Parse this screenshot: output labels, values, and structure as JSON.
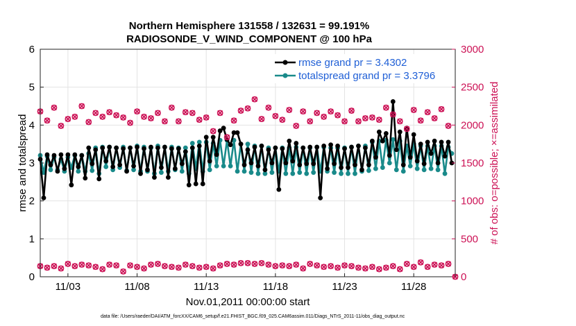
{
  "chart_data": {
    "type": "line",
    "title": "Northern Hemisphere 131558 / 132631 = 99.191%",
    "subtitle": "RADIOSONDE_V_WIND_COMPONENT @ 100 hPa",
    "xlabel": "Nov.01,2011 00:00:00 start",
    "ylabel": "rmse and totalspread",
    "y2label": "# of obs: o=possible; ×=assimilated",
    "footnote": "data file: /Users/raeder/DAI/ATM_forcXX/CAM6_setup/f.e21.FHIST_BGC.f09_025.CAM6assim.011/Diags_NTrS_2011-11/obs_diag_output.nc",
    "xlim": [
      1.0,
      31.0
    ],
    "ylim": [
      0,
      6
    ],
    "y2lim": [
      0,
      3000
    ],
    "x_ticks": [
      3,
      8,
      13,
      18,
      23,
      28
    ],
    "x_tick_labels": [
      "11/03",
      "11/08",
      "11/13",
      "11/18",
      "11/23",
      "11/28"
    ],
    "y_ticks": [
      0,
      1,
      2,
      3,
      4,
      5,
      6
    ],
    "y2_ticks": [
      0,
      500,
      1000,
      1500,
      2000,
      2500,
      3000
    ],
    "x": [
      1.0,
      1.25,
      1.5,
      1.75,
      2.0,
      2.25,
      2.5,
      2.75,
      3.0,
      3.25,
      3.5,
      3.75,
      4.0,
      4.25,
      4.5,
      4.75,
      5.0,
      5.25,
      5.5,
      5.75,
      6.0,
      6.25,
      6.5,
      6.75,
      7.0,
      7.25,
      7.5,
      7.75,
      8.0,
      8.25,
      8.5,
      8.75,
      9.0,
      9.25,
      9.5,
      9.75,
      10.0,
      10.25,
      10.5,
      10.75,
      11.0,
      11.25,
      11.5,
      11.75,
      12.0,
      12.25,
      12.5,
      12.75,
      13.0,
      13.25,
      13.5,
      13.75,
      14.0,
      14.25,
      14.5,
      14.75,
      15.0,
      15.25,
      15.5,
      15.75,
      16.0,
      16.25,
      16.5,
      16.75,
      17.0,
      17.25,
      17.5,
      17.75,
      18.0,
      18.25,
      18.5,
      18.75,
      19.0,
      19.25,
      19.5,
      19.75,
      20.0,
      20.25,
      20.5,
      20.75,
      21.0,
      21.25,
      21.5,
      21.75,
      22.0,
      22.25,
      22.5,
      22.75,
      23.0,
      23.25,
      23.5,
      23.75,
      24.0,
      24.25,
      24.5,
      24.75,
      25.0,
      25.25,
      25.5,
      25.75,
      26.0,
      26.25,
      26.5,
      26.75,
      27.0,
      27.25,
      27.5,
      27.75,
      28.0,
      28.25,
      28.5,
      28.75,
      29.0,
      29.25,
      29.5,
      29.75,
      30.0,
      30.25,
      30.5,
      30.75
    ],
    "series": [
      {
        "name": "rmse grand pr = 3.4302",
        "color": "#000000",
        "axis": "left",
        "values": [
          3.1,
          2.08,
          3.22,
          2.95,
          3.2,
          2.78,
          3.22,
          2.85,
          3.22,
          2.42,
          3.22,
          2.9,
          3.2,
          2.6,
          3.4,
          2.98,
          3.35,
          2.58,
          3.4,
          3.05,
          3.42,
          2.9,
          3.4,
          2.95,
          3.38,
          2.78,
          3.4,
          2.92,
          3.42,
          2.72,
          3.38,
          2.82,
          3.42,
          2.62,
          3.4,
          2.88,
          3.42,
          2.62,
          3.38,
          2.85,
          3.38,
          2.98,
          3.3,
          2.42,
          3.4,
          2.45,
          3.45,
          2.45,
          3.68,
          3.05,
          3.68,
          3.22,
          3.85,
          3.92,
          3.62,
          3.48,
          3.8,
          3.8,
          3.5,
          2.95,
          3.35,
          3.0,
          3.42,
          2.92,
          3.45,
          2.82,
          3.35,
          3.0,
          3.4,
          2.3,
          3.38,
          3.0,
          3.58,
          3.05,
          3.52,
          2.95,
          3.4,
          2.98,
          3.42,
          2.98,
          3.42,
          2.08,
          3.45,
          2.85,
          3.48,
          2.98,
          3.45,
          2.88,
          3.38,
          2.88,
          3.42,
          2.95,
          3.45,
          2.82,
          3.4,
          2.95,
          3.58,
          3.15,
          3.82,
          3.58,
          3.78,
          3.2,
          4.62,
          3.35,
          3.82,
          2.95,
          3.92,
          3.15,
          3.75,
          3.05,
          3.5,
          2.98,
          3.55,
          3.25,
          3.58,
          3.0,
          3.55,
          3.18,
          3.55,
          3.0
        ],
        "min_rmse_unused": 0
      },
      {
        "name": "totalspread grand pr = 3.3796",
        "color": "#198a8a",
        "axis": "left",
        "values": [
          3.2,
          2.75,
          3.18,
          2.82,
          3.15,
          2.82,
          3.1,
          2.78,
          3.15,
          2.88,
          3.2,
          2.78,
          3.2,
          2.78,
          3.25,
          2.8,
          3.4,
          2.72,
          3.42,
          2.9,
          3.42,
          2.82,
          3.4,
          2.88,
          3.42,
          2.8,
          3.4,
          2.82,
          3.45,
          2.78,
          3.42,
          2.78,
          3.4,
          2.72,
          3.45,
          2.75,
          3.42,
          2.78,
          3.42,
          2.82,
          3.4,
          2.78,
          3.4,
          2.72,
          3.52,
          2.85,
          3.55,
          2.78,
          3.55,
          2.82,
          3.52,
          2.92,
          3.6,
          2.92,
          3.6,
          2.92,
          3.6,
          2.78,
          3.5,
          2.78,
          3.5,
          2.75,
          3.45,
          2.72,
          3.45,
          2.72,
          3.4,
          2.75,
          3.4,
          2.78,
          3.4,
          2.72,
          3.4,
          2.72,
          3.42,
          2.75,
          3.4,
          2.72,
          3.4,
          2.75,
          3.42,
          2.78,
          3.42,
          2.78,
          3.4,
          2.75,
          3.4,
          2.72,
          3.4,
          2.72,
          3.42,
          2.72,
          3.45,
          2.78,
          3.45,
          2.8,
          3.55,
          2.85,
          3.58,
          2.88,
          3.6,
          3.0,
          3.62,
          2.82,
          3.58,
          2.78,
          3.45,
          2.92,
          3.5,
          2.85,
          3.45,
          2.82,
          3.45,
          2.85,
          3.45,
          2.82,
          3.45,
          2.72,
          3.42,
          3.25
        ]
      }
    ],
    "obs_possible": {
      "axis": "right",
      "color": "#cc1155",
      "marker": "o",
      "x": [
        1,
        1.5,
        2,
        2.5,
        3,
        3.5,
        4,
        4.5,
        5,
        5.5,
        6,
        6.5,
        7,
        7.5,
        8,
        8.5,
        9,
        9.5,
        10,
        10.5,
        11,
        11.5,
        12,
        12.5,
        13,
        13.5,
        14,
        14.5,
        15,
        15.5,
        16,
        16.5,
        17,
        17.5,
        18,
        18.5,
        19,
        19.5,
        20,
        20.5,
        21,
        21.5,
        22,
        22.5,
        23,
        23.5,
        24,
        24.5,
        25,
        25.5,
        26,
        26.5,
        27,
        27.5,
        28,
        28.5,
        29,
        29.5,
        30,
        30.5
      ],
      "values": [
        2180,
        2060,
        2230,
        1990,
        2080,
        2110,
        2250,
        2040,
        2160,
        2110,
        2170,
        2130,
        2100,
        2030,
        2180,
        2110,
        2090,
        2160,
        2050,
        2230,
        2050,
        2170,
        2160,
        2070,
        2100,
        1920,
        2160,
        1840,
        2060,
        2190,
        2220,
        2340,
        2080,
        2230,
        2120,
        2070,
        2200,
        1990,
        2180,
        2050,
        2160,
        2110,
        2180,
        2130,
        2050,
        2190,
        2050,
        2090,
        2100,
        2070,
        2230,
        2140,
        2050,
        1950,
        2200,
        2060,
        2170,
        2090,
        2210,
        1990
      ]
    },
    "obs_assimilated": {
      "axis": "right",
      "color": "#cc1155",
      "marker": "x",
      "x": [
        1,
        1.5,
        2,
        2.5,
        3,
        3.5,
        4,
        4.5,
        5,
        5.5,
        6,
        6.5,
        7,
        7.5,
        8,
        8.5,
        9,
        9.5,
        10,
        10.5,
        11,
        11.5,
        12,
        12.5,
        13,
        13.5,
        14,
        14.5,
        15,
        15.5,
        16,
        16.5,
        17,
        17.5,
        18,
        18.5,
        19,
        19.5,
        20,
        20.5,
        21,
        21.5,
        22,
        22.5,
        23,
        23.5,
        24,
        24.5,
        25,
        25.5,
        26,
        26.5,
        27,
        27.5,
        28,
        28.5,
        29,
        29.5,
        30,
        30.5,
        31
      ],
      "values": [
        140,
        120,
        140,
        110,
        170,
        140,
        160,
        150,
        130,
        100,
        160,
        150,
        70,
        150,
        130,
        110,
        160,
        170,
        140,
        130,
        120,
        160,
        140,
        120,
        130,
        110,
        150,
        170,
        160,
        180,
        180,
        170,
        180,
        160,
        140,
        150,
        140,
        160,
        110,
        170,
        150,
        130,
        140,
        120,
        150,
        140,
        120,
        110,
        130,
        100,
        120,
        140,
        100,
        170,
        130,
        190,
        130,
        160,
        150,
        170,
        0
      ]
    }
  }
}
